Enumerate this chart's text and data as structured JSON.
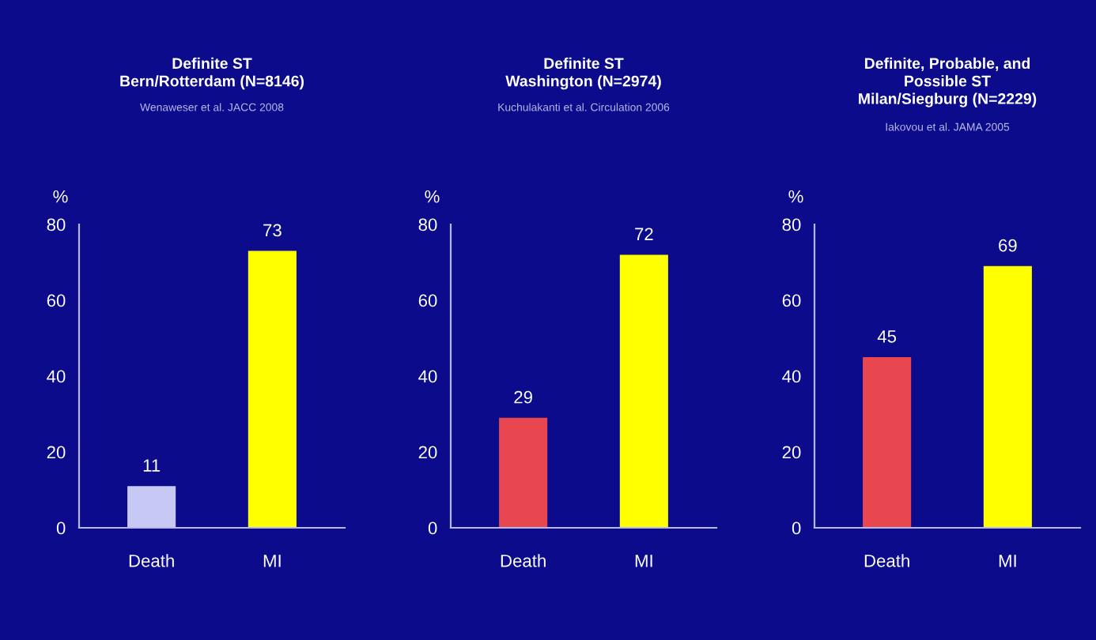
{
  "chart_data": [
    {
      "type": "bar",
      "title": "Definite ST\nBern/Rotterdam (N=8146)",
      "subtitle": "Wenaweser et al. JACC 2008",
      "ylabel": "%",
      "categories": [
        "Death",
        "MI"
      ],
      "values": [
        11,
        73
      ],
      "colors": [
        "#c8c8f4",
        "#ffff00"
      ],
      "ylim": [
        0,
        80
      ],
      "yticks": [
        0,
        20,
        40,
        60,
        80
      ],
      "data_labels": true,
      "grid": false,
      "legend": false
    },
    {
      "type": "bar",
      "title": "Definite ST\nWashington (N=2974)",
      "subtitle": "Kuchulakanti et al. Circulation 2006",
      "ylabel": "%",
      "categories": [
        "Death",
        "MI"
      ],
      "values": [
        29,
        72
      ],
      "colors": [
        "#e8474f",
        "#ffff00"
      ],
      "ylim": [
        0,
        80
      ],
      "yticks": [
        0,
        20,
        40,
        60,
        80
      ],
      "data_labels": true,
      "grid": false,
      "legend": false
    },
    {
      "type": "bar",
      "title": "Definite, Probable, and\nPossible ST\nMilan/Siegburg (N=2229)",
      "subtitle": "Iakovou et al. JAMA 2005",
      "ylabel": "%",
      "categories": [
        "Death",
        "MI"
      ],
      "values": [
        45,
        69
      ],
      "colors": [
        "#e8474f",
        "#ffff00"
      ],
      "ylim": [
        0,
        80
      ],
      "yticks": [
        0,
        20,
        40,
        60,
        80
      ],
      "data_labels": true,
      "grid": false,
      "legend": false
    }
  ]
}
